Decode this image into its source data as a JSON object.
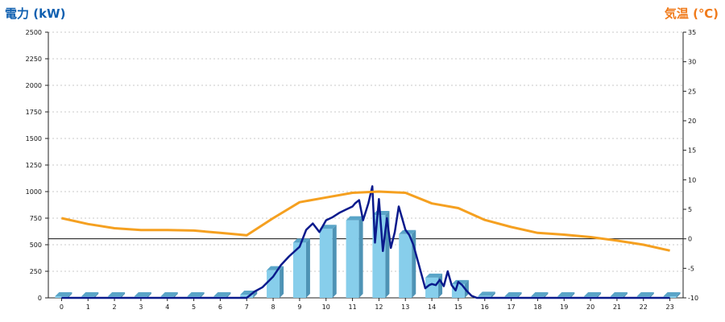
{
  "chart_data": {
    "type": "bar",
    "left_axis_title": "電力 (kW)",
    "right_axis_title": "気温 (℃)",
    "x_ticks": [
      "0",
      "1",
      "2",
      "3",
      "4",
      "5",
      "6",
      "7",
      "8",
      "9",
      "10",
      "11",
      "12",
      "13",
      "14",
      "15",
      "16",
      "17",
      "18",
      "19",
      "20",
      "21",
      "22",
      "23"
    ],
    "left_ylim": [
      0,
      2500
    ],
    "left_ticks": [
      0,
      250,
      500,
      750,
      1000,
      1250,
      1500,
      1750,
      2000,
      2250,
      2500
    ],
    "right_ylim": [
      -10,
      35
    ],
    "right_ticks": [
      -10,
      -5,
      0,
      5,
      10,
      15,
      20,
      25,
      30,
      35
    ],
    "grid": true,
    "series": [
      {
        "kind": "bar",
        "axis": "left",
        "color": "#87ceeb",
        "values": [
          0,
          0,
          0,
          0,
          0,
          0,
          0,
          30,
          260,
          520,
          650,
          730,
          780,
          600,
          190,
          130,
          20,
          0,
          0,
          0,
          0,
          0,
          0,
          0
        ]
      },
      {
        "kind": "line",
        "axis": "left",
        "color": "#0a1a8c",
        "x": [
          0,
          1,
          2,
          3,
          4,
          5,
          6,
          7,
          7.3,
          7.6,
          8,
          8.3,
          8.6,
          9,
          9.25,
          9.5,
          9.75,
          10,
          10.25,
          10.5,
          10.75,
          11,
          11.1,
          11.25,
          11.4,
          11.6,
          11.75,
          11.85,
          12,
          12.15,
          12.3,
          12.45,
          12.6,
          12.75,
          13,
          13.15,
          13.3,
          13.5,
          13.75,
          13.9,
          14,
          14.15,
          14.3,
          14.45,
          14.6,
          14.75,
          14.9,
          15,
          15.15,
          15.3,
          15.5,
          15.7,
          15.9,
          16,
          17,
          18,
          19,
          20,
          21,
          22,
          23
        ],
        "values": [
          0,
          0,
          0,
          0,
          0,
          0,
          0,
          0,
          60,
          100,
          200,
          310,
          390,
          480,
          640,
          700,
          620,
          730,
          760,
          800,
          830,
          860,
          890,
          920,
          730,
          890,
          1050,
          520,
          930,
          440,
          750,
          470,
          620,
          860,
          640,
          590,
          500,
          320,
          90,
          120,
          130,
          120,
          170,
          110,
          250,
          120,
          70,
          150,
          120,
          70,
          20,
          0,
          0,
          0,
          0,
          0,
          0,
          0,
          0,
          0,
          0
        ]
      },
      {
        "kind": "line",
        "axis": "right",
        "color": "#f5a020",
        "x": [
          0,
          1,
          2,
          3,
          4,
          5,
          6,
          7,
          8,
          9,
          10,
          11,
          12,
          13,
          14,
          15,
          16,
          17,
          18,
          19,
          20,
          21,
          22,
          23
        ],
        "values": [
          3.5,
          2.5,
          1.8,
          1.5,
          1.5,
          1.4,
          1.0,
          0.6,
          3.5,
          6.2,
          7.0,
          7.8,
          8.0,
          7.8,
          6.0,
          5.2,
          3.2,
          2.0,
          1.0,
          0.7,
          0.3,
          -0.3,
          -1.0,
          -2.0
        ]
      }
    ]
  }
}
